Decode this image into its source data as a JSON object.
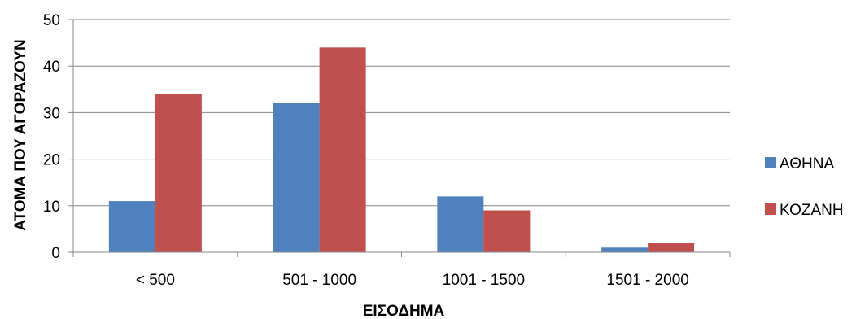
{
  "chart_data": {
    "type": "bar",
    "categories": [
      "< 500",
      "501 - 1000",
      "1001 - 1500",
      "1501 - 2000"
    ],
    "series": [
      {
        "name": "ΑΘΗΝΑ",
        "values": [
          11,
          32,
          12,
          1
        ],
        "color": "#4f81bd"
      },
      {
        "name": "ΚΟΖΑΝΗ",
        "values": [
          34,
          44,
          9,
          2
        ],
        "color": "#c0504d"
      }
    ],
    "title": "",
    "xlabel": "ΕΙΣΟΔΗΜΑ",
    "ylabel": "ΑΤΟΜΑ ΠΟΥ ΑΓΟΡΑΖΟΥΝ",
    "ylim": [
      0,
      50
    ],
    "yticks": [
      0,
      10,
      20,
      30,
      40,
      50
    ],
    "grid": true,
    "legend_position": "right"
  }
}
